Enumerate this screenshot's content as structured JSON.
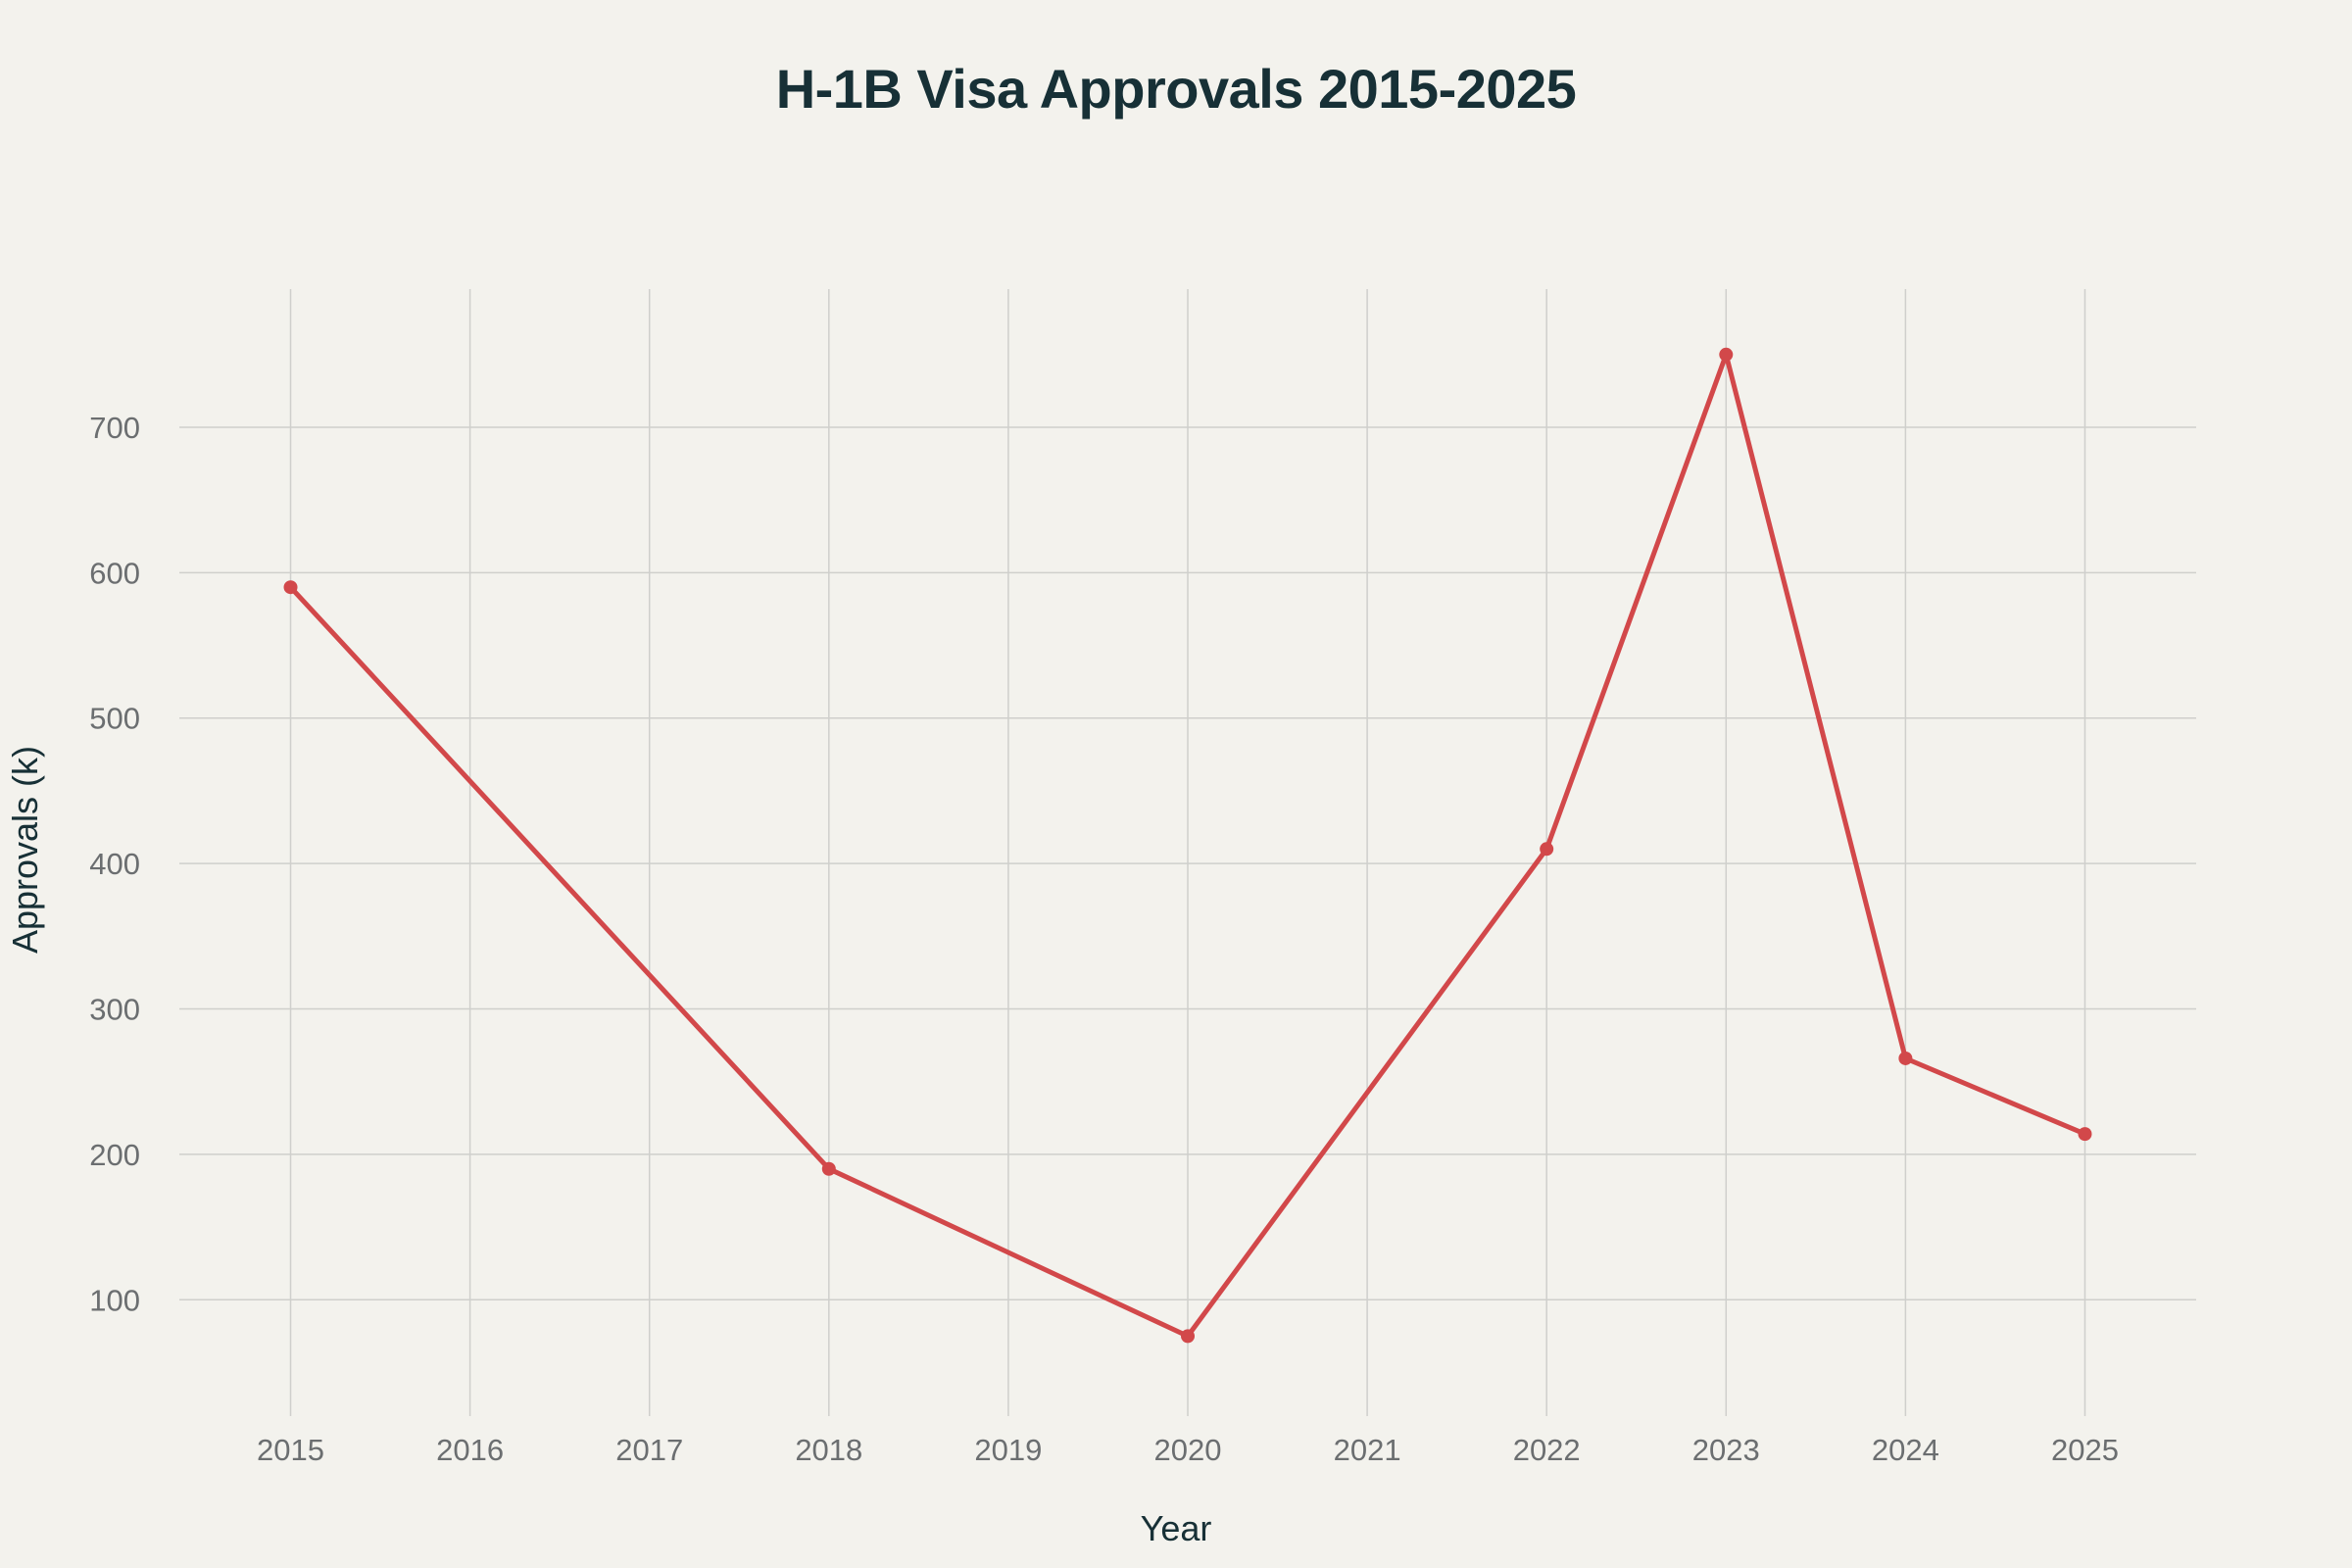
{
  "chart_data": {
    "type": "line",
    "title": "H-1B Visa Approvals 2015-2025",
    "xlabel": "Year",
    "ylabel": "Approvals (k)",
    "x_ticks": [
      "2015",
      "2016",
      "2017",
      "2018",
      "2019",
      "2020",
      "2021",
      "2022",
      "2023",
      "2024",
      "2025"
    ],
    "y_ticks": [
      100,
      200,
      300,
      400,
      500,
      600,
      700
    ],
    "xlim": [
      2014.38,
      2025.62
    ],
    "ylim": [
      20,
      795
    ],
    "grid": true,
    "series": [
      {
        "x": [
          2015,
          2018,
          2020,
          2022,
          2023,
          2024,
          2025
        ],
        "y": [
          590,
          190,
          75,
          410,
          750,
          266,
          214
        ],
        "color": "#d2484a"
      }
    ]
  }
}
